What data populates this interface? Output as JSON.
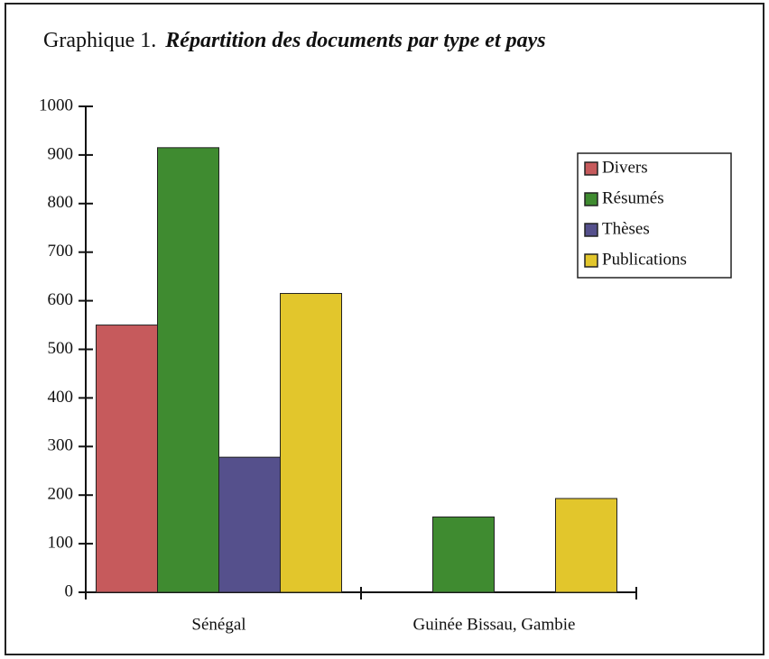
{
  "chart_data": {
    "type": "bar",
    "title": "Graphique 1.",
    "subtitle": "Répartition des documents par type et pays",
    "categories": [
      "Sénégal",
      "Guinée Bissau, Gambie"
    ],
    "series": [
      {
        "name": "Divers",
        "color": "#c65a5c",
        "values": [
          550,
          null
        ]
      },
      {
        "name": "Résumés",
        "color": "#3f8b30",
        "values": [
          915,
          155
        ]
      },
      {
        "name": "Thèses",
        "color": "#55508c",
        "values": [
          278,
          null
        ]
      },
      {
        "name": "Publications",
        "color": "#e2c62c",
        "values": [
          615,
          193
        ]
      }
    ],
    "ylim": [
      0,
      1000
    ],
    "yticks": [
      0,
      100,
      200,
      300,
      400,
      500,
      600,
      700,
      800,
      900,
      1000
    ],
    "legend": "upper right"
  }
}
